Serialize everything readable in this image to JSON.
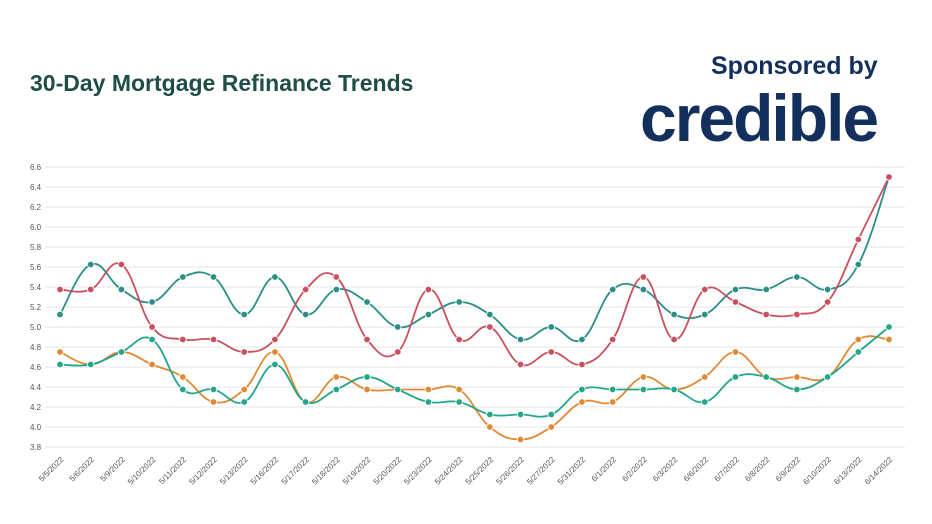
{
  "header": {
    "title": "30-Day Mortgage Refinance Trends",
    "sponsor_label": "Sponsored by",
    "sponsor_logo": "credible"
  },
  "chart_data": {
    "type": "line",
    "title": "30-Day Mortgage Refinance Trends",
    "xlabel": "",
    "ylabel": "",
    "ylim": [
      3.8,
      6.6
    ],
    "yticks": [
      "3.8",
      "4.0",
      "4.2",
      "4.4",
      "4.6",
      "4.8",
      "5.0",
      "5.2",
      "5.4",
      "5.6",
      "5.8",
      "6.0",
      "6.2",
      "6.4",
      "6.6"
    ],
    "grid": true,
    "legend": "none",
    "categories": [
      "5/5/2022",
      "5/6/2022",
      "5/9/2022",
      "5/10/2022",
      "5/11/2022",
      "5/12/2022",
      "5/13/2022",
      "5/16/2022",
      "5/17/2022",
      "5/18/2022",
      "5/19/2022",
      "5/20/2022",
      "5/23/2022",
      "5/24/2022",
      "5/25/2022",
      "5/26/2022",
      "5/27/2022",
      "5/31/2022",
      "6/1/2022",
      "6/2/2022",
      "6/3/2022",
      "6/6/2022",
      "6/7/2022",
      "6/8/2022",
      "6/9/2022",
      "6/10/2022",
      "6/13/2022",
      "6/14/2022"
    ],
    "series": [
      {
        "color": "#2b8f86",
        "values": [
          5.125,
          5.625,
          5.375,
          5.25,
          5.5,
          5.5,
          5.125,
          5.5,
          5.125,
          5.375,
          5.25,
          5.0,
          5.125,
          5.25,
          5.125,
          4.875,
          5.0,
          4.875,
          5.375,
          5.375,
          5.125,
          5.125,
          5.375,
          5.375,
          5.5,
          5.375,
          5.625,
          6.5
        ]
      },
      {
        "color": "#c9505f",
        "values": [
          5.375,
          5.375,
          5.625,
          5.0,
          4.875,
          4.875,
          4.75,
          4.875,
          5.375,
          5.5,
          4.875,
          4.75,
          5.375,
          4.875,
          5.0,
          4.625,
          4.75,
          4.625,
          4.875,
          5.5,
          4.875,
          5.375,
          5.25,
          5.125,
          5.125,
          5.25,
          5.875,
          6.5
        ]
      },
      {
        "color": "#e08a35",
        "values": [
          4.75,
          4.625,
          4.75,
          4.625,
          4.5,
          4.25,
          4.375,
          4.75,
          4.25,
          4.5,
          4.375,
          4.375,
          4.375,
          4.375,
          4.0,
          3.875,
          4.0,
          4.25,
          4.25,
          4.5,
          4.375,
          4.5,
          4.75,
          4.5,
          4.5,
          4.5,
          4.875,
          4.875
        ]
      },
      {
        "color": "#22a68c",
        "values": [
          4.625,
          4.625,
          4.75,
          4.875,
          4.375,
          4.375,
          4.25,
          4.625,
          4.25,
          4.375,
          4.5,
          4.375,
          4.25,
          4.25,
          4.125,
          4.125,
          4.125,
          4.375,
          4.375,
          4.375,
          4.375,
          4.25,
          4.5,
          4.5,
          4.375,
          4.5,
          4.75,
          5.0
        ]
      }
    ]
  }
}
